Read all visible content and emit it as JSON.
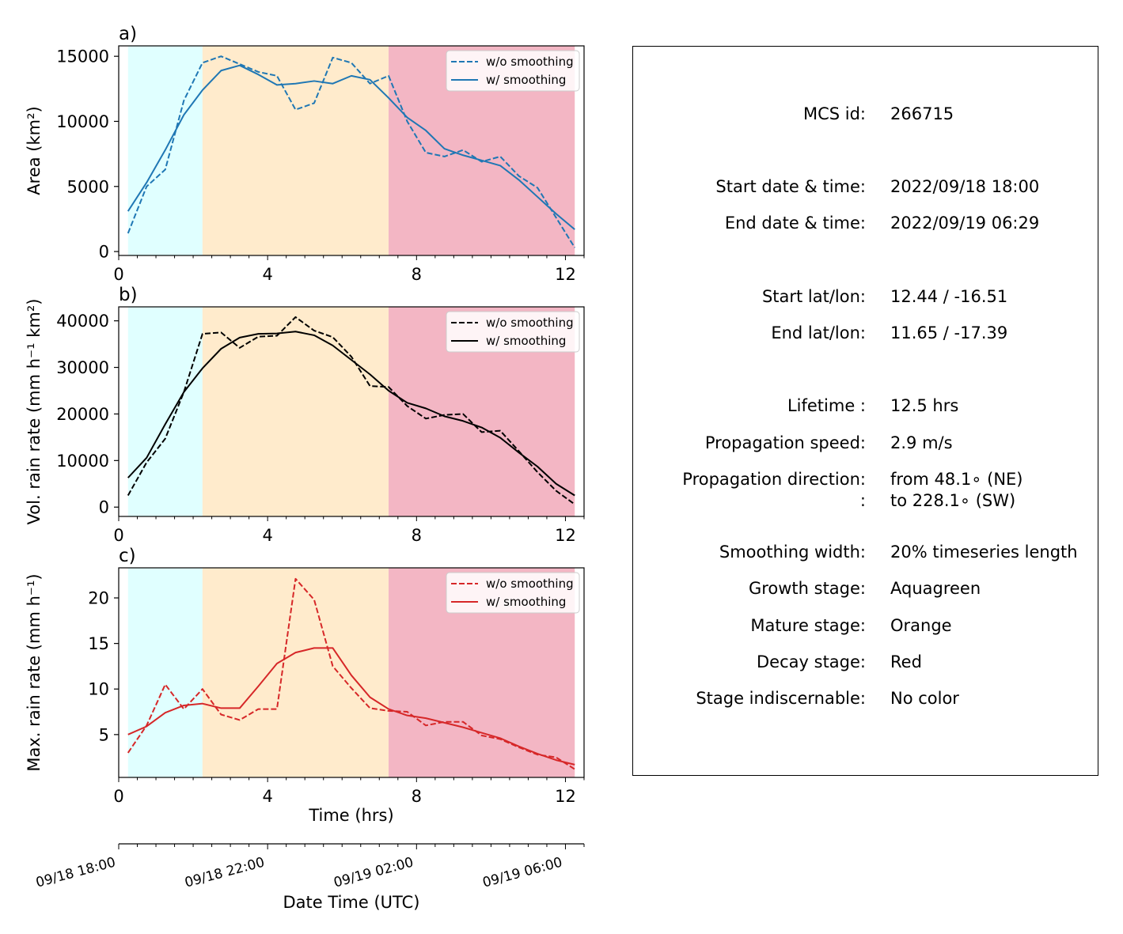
{
  "chart_data": [
    {
      "type": "line",
      "panel_label": "a)",
      "ylabel": "Area  (km²)",
      "color": "#1f77b4",
      "xlim": [
        0,
        12.5
      ],
      "ylim": [
        -300,
        15800
      ],
      "yticks": [
        0,
        5000,
        10000,
        15000
      ],
      "ytick_labels": [
        "0",
        "5000",
        "10000",
        "15000"
      ],
      "xticks": [
        0,
        4,
        8,
        12
      ],
      "xtick_labels": [
        "0",
        "4",
        "8",
        "12"
      ],
      "stages": [
        {
          "name": "Growth",
          "start": 0.25,
          "end": 2.25,
          "color": "#e0ffff"
        },
        {
          "name": "Mature",
          "start": 2.25,
          "end": 7.25,
          "color": "#ffebcc"
        },
        {
          "name": "Decay",
          "start": 7.25,
          "end": 12.25,
          "color": "#f3b6c4"
        }
      ],
      "legend": [
        "w/o smoothing",
        "w/ smoothing"
      ],
      "legend_position": "upper right",
      "series": [
        {
          "name": "w/o smoothing",
          "style": "dashed",
          "x": [
            0.25,
            0.75,
            1.25,
            1.75,
            2.25,
            2.75,
            3.25,
            3.75,
            4.25,
            4.75,
            5.25,
            5.75,
            6.25,
            6.75,
            7.25,
            7.75,
            8.25,
            8.75,
            9.25,
            9.75,
            10.25,
            10.75,
            11.25,
            11.75,
            12.25
          ],
          "y": [
            1400,
            5000,
            6300,
            11600,
            14500,
            15000,
            14400,
            13800,
            13500,
            10900,
            11400,
            14900,
            14500,
            12900,
            13500,
            10000,
            7600,
            7300,
            7800,
            6900,
            7300,
            5800,
            4900,
            2600,
            300
          ]
        },
        {
          "name": "w/ smoothing",
          "style": "solid",
          "x": [
            0.25,
            0.75,
            1.25,
            1.75,
            2.25,
            2.75,
            3.25,
            3.75,
            4.25,
            4.75,
            5.25,
            5.75,
            6.25,
            6.75,
            7.25,
            7.75,
            8.25,
            8.75,
            9.25,
            9.75,
            10.25,
            10.75,
            11.25,
            11.75,
            12.25
          ],
          "y": [
            3100,
            5300,
            7800,
            10500,
            12400,
            13900,
            14300,
            13600,
            12800,
            12900,
            13100,
            12900,
            13500,
            13200,
            11800,
            10300,
            9300,
            7900,
            7400,
            7000,
            6600,
            5500,
            4200,
            2900,
            1700
          ]
        }
      ]
    },
    {
      "type": "line",
      "panel_label": "b)",
      "ylabel": "Vol. rain rate (mm h⁻¹ km²)",
      "color": "#000000",
      "xlim": [
        0,
        12.5
      ],
      "ylim": [
        -2000,
        43000
      ],
      "yticks": [
        0,
        10000,
        20000,
        30000,
        40000
      ],
      "ytick_labels": [
        "0",
        "10000",
        "20000",
        "30000",
        "40000"
      ],
      "xticks": [
        0,
        4,
        8,
        12
      ],
      "xtick_labels": [
        "0",
        "4",
        "8",
        "12"
      ],
      "stages": [
        {
          "name": "Growth",
          "start": 0.25,
          "end": 2.25,
          "color": "#e0ffff"
        },
        {
          "name": "Mature",
          "start": 2.25,
          "end": 7.25,
          "color": "#ffebcc"
        },
        {
          "name": "Decay",
          "start": 7.25,
          "end": 12.25,
          "color": "#f3b6c4"
        }
      ],
      "legend": [
        "w/o smoothing",
        "w/ smoothing"
      ],
      "legend_position": "upper right",
      "series": [
        {
          "name": "w/o smoothing",
          "style": "dashed",
          "x": [
            0.25,
            0.75,
            1.25,
            1.75,
            2.25,
            2.75,
            3.25,
            3.75,
            4.25,
            4.75,
            5.25,
            5.75,
            6.25,
            6.75,
            7.25,
            7.75,
            8.25,
            8.75,
            9.25,
            9.75,
            10.25,
            10.75,
            11.25,
            11.75,
            12.25
          ],
          "y": [
            2500,
            9600,
            14700,
            24700,
            37200,
            37500,
            34200,
            36600,
            36800,
            40800,
            37900,
            36500,
            32300,
            26000,
            25800,
            21700,
            19000,
            19800,
            20000,
            16100,
            16400,
            12000,
            7500,
            3500,
            600
          ]
        },
        {
          "name": "w/ smoothing",
          "style": "solid",
          "x": [
            0.25,
            0.75,
            1.25,
            1.75,
            2.25,
            2.75,
            3.25,
            3.75,
            4.25,
            4.75,
            5.25,
            5.75,
            6.25,
            6.75,
            7.25,
            7.75,
            8.25,
            8.75,
            9.25,
            9.75,
            10.25,
            10.75,
            11.25,
            11.75,
            12.25
          ],
          "y": [
            6300,
            10600,
            17800,
            24700,
            29800,
            34000,
            36400,
            37200,
            37300,
            37700,
            36900,
            34700,
            31600,
            28500,
            25000,
            22400,
            21200,
            19500,
            18500,
            17100,
            14900,
            11700,
            8700,
            5000,
            2500
          ]
        }
      ]
    },
    {
      "type": "line",
      "panel_label": "c)",
      "ylabel": "Max. rain rate  (mm h⁻¹)",
      "xlabel": "Time (hrs)",
      "color": "#d62728",
      "xlim": [
        0,
        12.5
      ],
      "ylim": [
        0.3,
        23.3
      ],
      "yticks": [
        5,
        10,
        15,
        20
      ],
      "ytick_labels": [
        "5",
        "10",
        "15",
        "20"
      ],
      "xticks": [
        0,
        4,
        8,
        12
      ],
      "xtick_labels": [
        "0",
        "4",
        "8",
        "12"
      ],
      "stages": [
        {
          "name": "Growth",
          "start": 0.25,
          "end": 2.25,
          "color": "#e0ffff"
        },
        {
          "name": "Mature",
          "start": 2.25,
          "end": 7.25,
          "color": "#ffebcc"
        },
        {
          "name": "Decay",
          "start": 7.25,
          "end": 12.25,
          "color": "#f3b6c4"
        }
      ],
      "legend": [
        "w/o smoothing",
        "w/ smoothing"
      ],
      "legend_position": "upper right",
      "series": [
        {
          "name": "w/o smoothing",
          "style": "dashed",
          "x": [
            0.25,
            0.75,
            1.25,
            1.75,
            2.25,
            2.75,
            3.25,
            3.75,
            4.25,
            4.75,
            5.25,
            5.75,
            6.25,
            6.75,
            7.25,
            7.75,
            8.25,
            8.75,
            9.25,
            9.75,
            10.25,
            10.75,
            11.25,
            11.75,
            12.25
          ],
          "y": [
            3.0,
            6.0,
            10.5,
            7.8,
            10.0,
            7.2,
            6.6,
            7.8,
            7.8,
            22.1,
            19.8,
            12.5,
            10.1,
            7.9,
            7.6,
            7.5,
            6.0,
            6.4,
            6.4,
            4.9,
            4.5,
            3.6,
            2.8,
            2.5,
            1.2
          ]
        },
        {
          "name": "w/ smoothing",
          "style": "solid",
          "x": [
            0.25,
            0.75,
            1.25,
            1.75,
            2.25,
            2.75,
            3.25,
            3.75,
            4.25,
            4.75,
            5.25,
            5.75,
            6.25,
            6.75,
            7.25,
            7.75,
            8.25,
            8.75,
            9.25,
            9.75,
            10.25,
            10.75,
            11.25,
            11.75,
            12.25
          ],
          "y": [
            5.0,
            5.9,
            7.4,
            8.2,
            8.4,
            7.9,
            7.9,
            10.3,
            12.8,
            14.0,
            14.5,
            14.5,
            11.5,
            9.1,
            7.8,
            7.1,
            6.8,
            6.3,
            5.8,
            5.2,
            4.6,
            3.7,
            2.9,
            2.2,
            1.7
          ]
        }
      ]
    }
  ],
  "time_axis": {
    "xlabel": "Date Time (UTC)",
    "major_ticks": [
      0,
      4,
      8,
      12
    ],
    "tick_labels": [
      "09/18 18:00",
      "09/18 22:00",
      "09/19 02:00",
      "09/19 06:00"
    ],
    "minor_step_hours": 0.5
  },
  "info": {
    "mcs_id_label": "MCS id:",
    "mcs_id": "266715",
    "start_time_label": "Start date & time:",
    "start_time": "2022/09/18 18:00",
    "end_time_label": "End date & time:",
    "end_time": "2022/09/19 06:29",
    "start_latlon_label": "Start lat/lon:",
    "start_latlon": "12.44 / -16.51",
    "end_latlon_label": "End lat/lon:",
    "end_latlon": "11.65 / -17.39",
    "lifetime_label": "Lifetime :",
    "lifetime": "12.5 hrs",
    "speed_label": "Propagation speed:",
    "speed": "2.9 m/s",
    "direction_label": "Propagation direction:",
    "direction_from": "from  48.1∘ (NE)",
    "direction_label2": ":",
    "direction_to": "to   228.1∘ (SW)",
    "smoothing_label": "Smoothing width:",
    "smoothing": "20% timeseries length",
    "growth_label": "Growth stage:",
    "growth": "Aquagreen",
    "mature_label": "Mature stage:",
    "mature": "Orange",
    "decay_label": "Decay stage:",
    "decay": "Red",
    "indisc_label": "Stage indiscernable:",
    "indisc": "No color"
  }
}
